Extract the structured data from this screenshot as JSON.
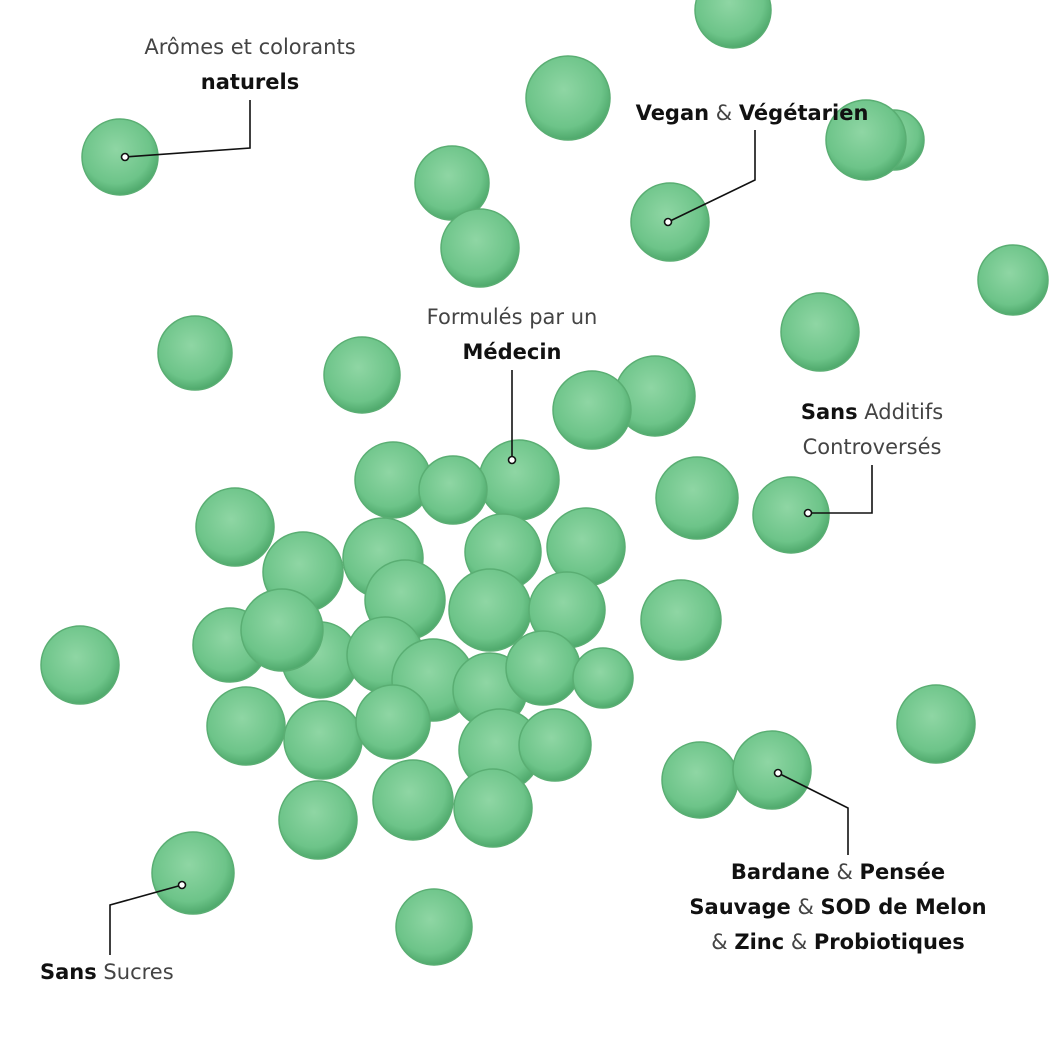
{
  "annotations": [
    {
      "lines": [
        [
          {
            "text": "Arômes et colorants",
            "bold": false
          }
        ],
        [
          {
            "text": "naturels",
            "bold": true
          }
        ]
      ]
    },
    {
      "lines": [
        [
          {
            "text": "Vegan",
            "bold": true
          },
          {
            "text": " & ",
            "bold": false
          },
          {
            "text": "Végétarien",
            "bold": true
          }
        ]
      ]
    },
    {
      "lines": [
        [
          {
            "text": "Formulés par un",
            "bold": false
          }
        ],
        [
          {
            "text": "Médecin",
            "bold": true
          }
        ]
      ]
    },
    {
      "lines": [
        [
          {
            "text": "Sans",
            "bold": true
          },
          {
            "text": " Additifs",
            "bold": false
          }
        ],
        [
          {
            "text": "Controversés",
            "bold": false
          }
        ]
      ]
    },
    {
      "lines": [
        [
          {
            "text": "Bardane",
            "bold": true
          },
          {
            "text": " & ",
            "bold": false
          },
          {
            "text": "Pensée",
            "bold": true
          }
        ],
        [
          {
            "text": "Sauvage",
            "bold": true
          },
          {
            "text": " & ",
            "bold": false
          },
          {
            "text": "SOD de Melon",
            "bold": true
          }
        ],
        [
          {
            "text": "& ",
            "bold": false
          },
          {
            "text": "Zinc",
            "bold": true
          },
          {
            "text": " & ",
            "bold": false
          },
          {
            "text": "Probiotiques",
            "bold": true
          }
        ]
      ]
    },
    {
      "lines": [
        [
          {
            "text": "Sans",
            "bold": true
          },
          {
            "text": " Sucres",
            "bold": false
          }
        ]
      ]
    }
  ]
}
